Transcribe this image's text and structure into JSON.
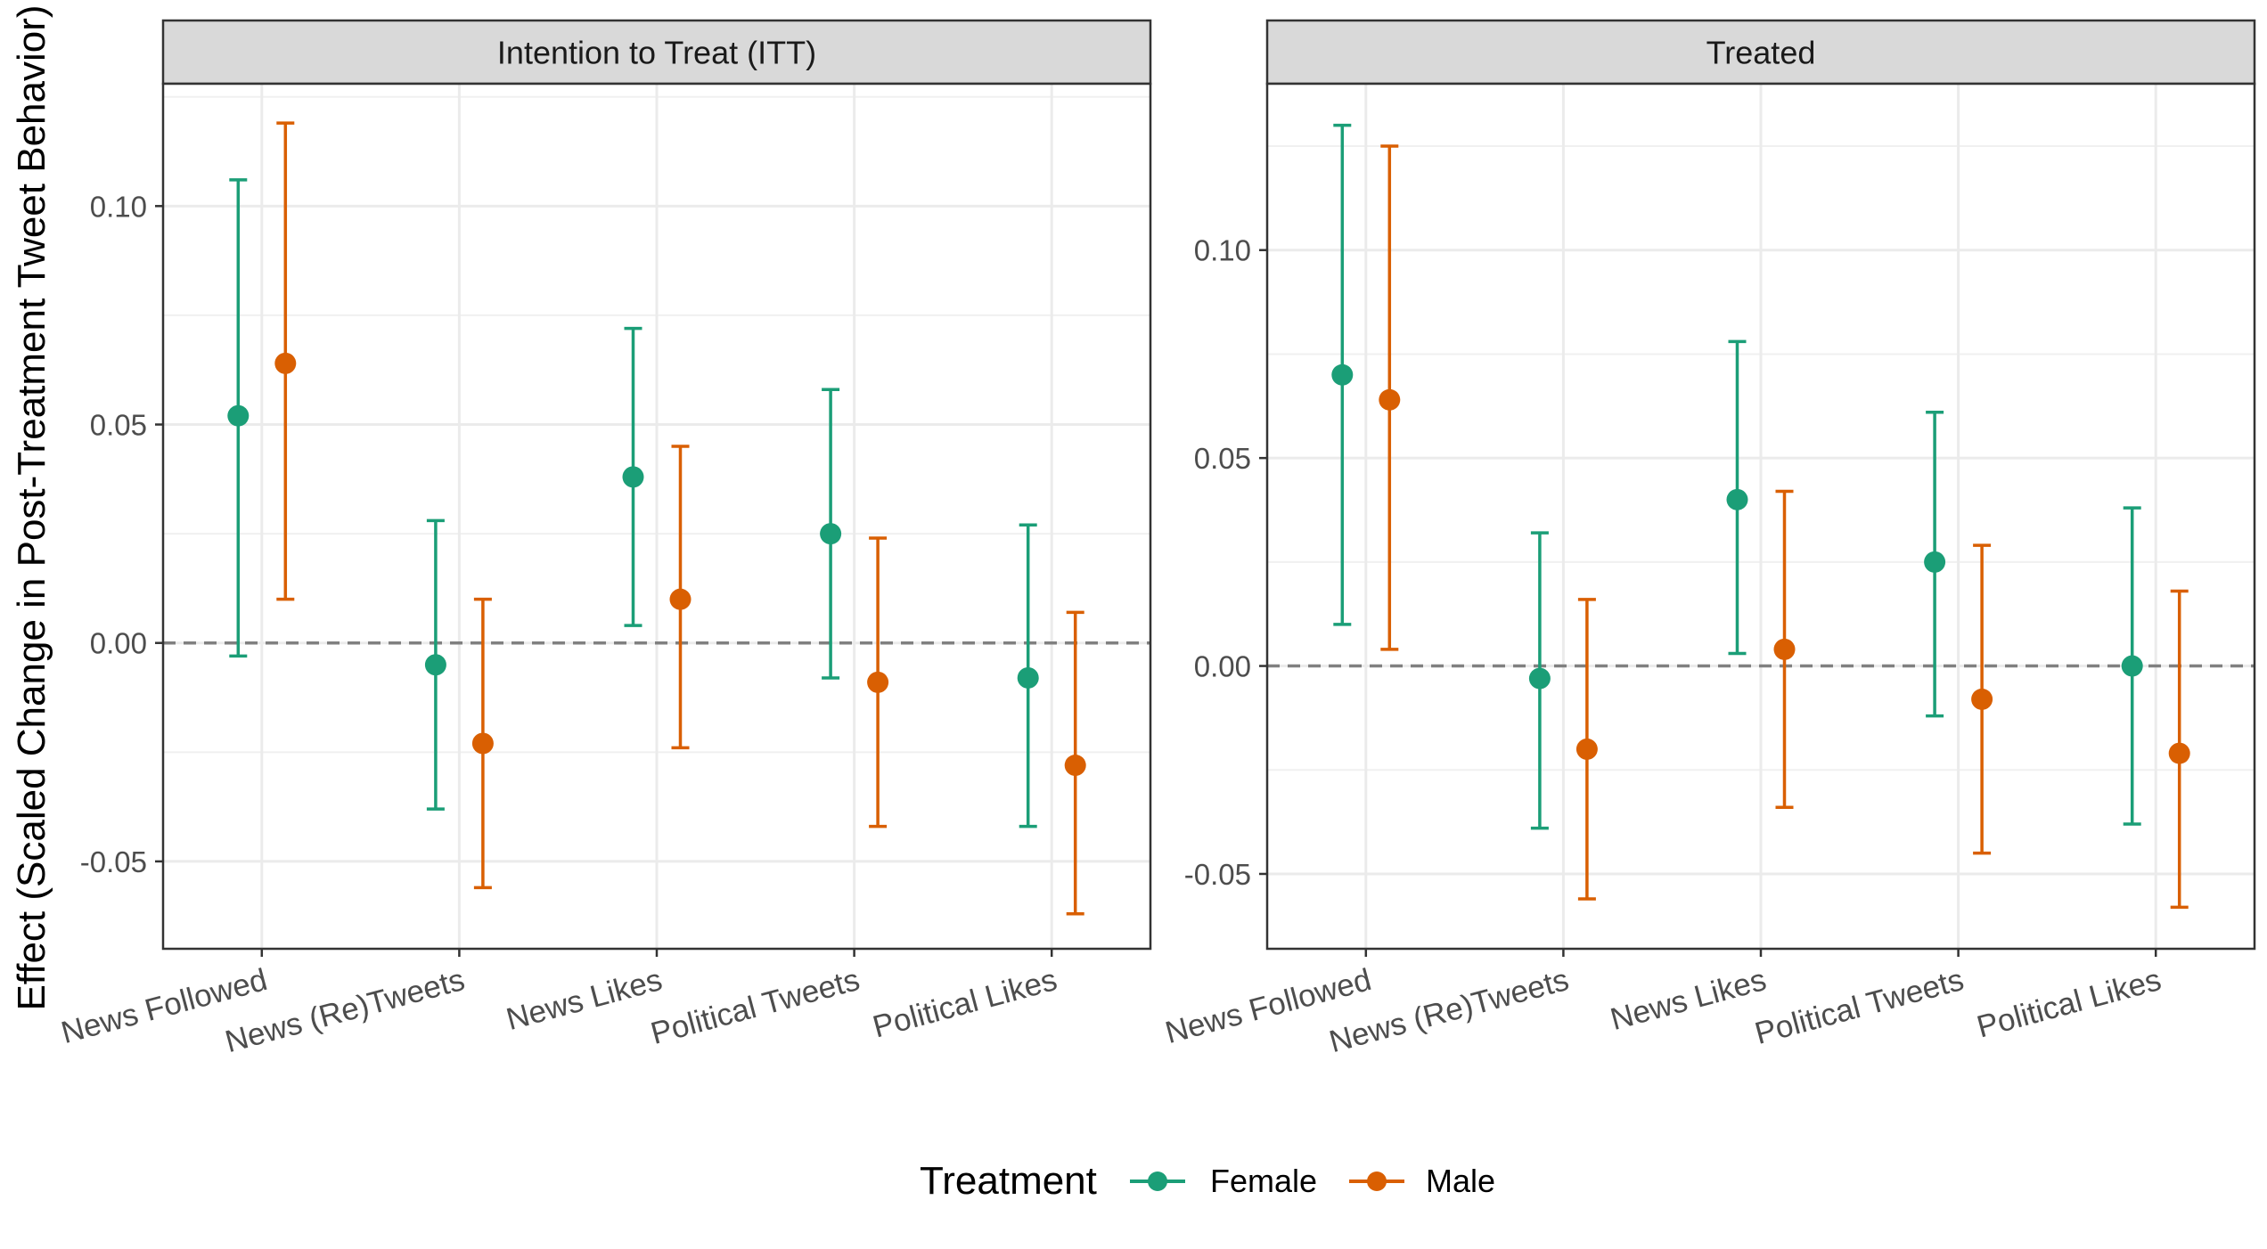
{
  "chart_data": {
    "type": "errorbar",
    "ylabel": "Effect (Scaled Change in Post-Treatment Tweet Behavior)",
    "legend": {
      "title": "Treatment",
      "position": "bottom",
      "entries": [
        {
          "name": "Female",
          "color": "#1b9e77"
        },
        {
          "name": "Male",
          "color": "#d95f02"
        }
      ]
    },
    "categories": [
      "News Followed",
      "News (Re)Tweets",
      "News Likes",
      "Political Tweets",
      "Political Likes"
    ],
    "panels": [
      {
        "title": "Intention to Treat (ITT)",
        "ylim": [
          -0.07,
          0.128
        ],
        "yticks": [
          -0.05,
          0.0,
          0.05,
          0.1
        ],
        "ytick_labels": [
          "-0.05",
          "0.00",
          "0.05",
          "0.10"
        ],
        "reference_line": 0,
        "series": [
          {
            "name": "Female",
            "color": "#1b9e77",
            "estimates": [
              0.052,
              -0.005,
              0.038,
              0.025,
              -0.008
            ],
            "lower": [
              -0.003,
              -0.038,
              0.004,
              -0.008,
              -0.042
            ],
            "upper": [
              0.106,
              0.028,
              0.072,
              0.058,
              0.027
            ]
          },
          {
            "name": "Male",
            "color": "#d95f02",
            "estimates": [
              0.064,
              -0.023,
              0.01,
              -0.009,
              -0.028
            ],
            "lower": [
              0.01,
              -0.056,
              -0.024,
              -0.042,
              -0.062
            ],
            "upper": [
              0.119,
              0.01,
              0.045,
              0.024,
              0.007
            ]
          }
        ]
      },
      {
        "title": "Treated",
        "ylim": [
          -0.068,
          0.14
        ],
        "yticks": [
          -0.05,
          0.0,
          0.05,
          0.1
        ],
        "ytick_labels": [
          "-0.05",
          "0.00",
          "0.05",
          "0.10"
        ],
        "reference_line": 0,
        "series": [
          {
            "name": "Female",
            "color": "#1b9e77",
            "estimates": [
              0.07,
              -0.003,
              0.04,
              0.025,
              0.0
            ],
            "lower": [
              0.01,
              -0.039,
              0.003,
              -0.012,
              -0.038
            ],
            "upper": [
              0.13,
              0.032,
              0.078,
              0.061,
              0.038
            ]
          },
          {
            "name": "Male",
            "color": "#d95f02",
            "estimates": [
              0.064,
              -0.02,
              0.004,
              -0.008,
              -0.021
            ],
            "lower": [
              0.004,
              -0.056,
              -0.034,
              -0.045,
              -0.058
            ],
            "upper": [
              0.125,
              0.016,
              0.042,
              0.029,
              0.018
            ]
          }
        ]
      }
    ]
  }
}
